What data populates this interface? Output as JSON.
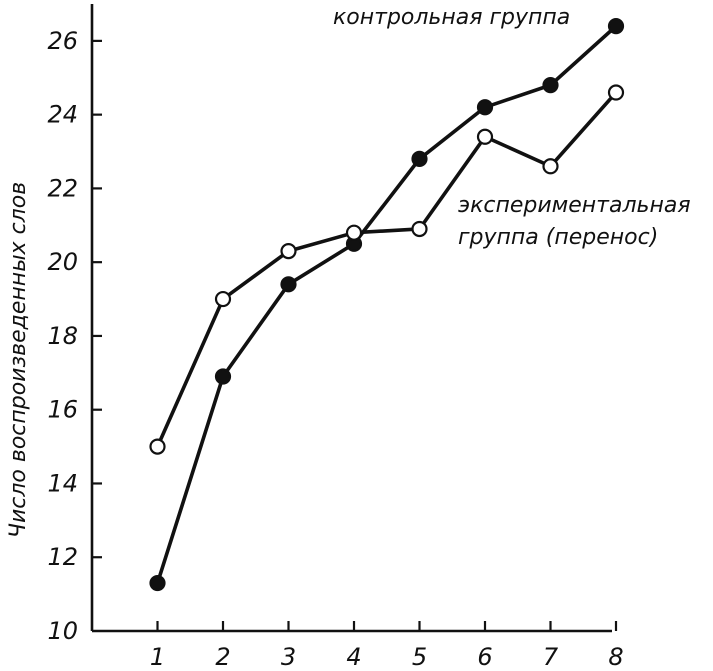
{
  "chart_data": {
    "type": "line",
    "title": "",
    "xlabel": "",
    "ylabel": "Число воспроизведенных слов",
    "x": [
      1,
      2,
      3,
      4,
      5,
      6,
      7,
      8
    ],
    "xlim": [
      0,
      8
    ],
    "ylim": [
      10,
      27
    ],
    "yticks": [
      10,
      12,
      14,
      16,
      18,
      20,
      22,
      24,
      26
    ],
    "grid": false,
    "series": [
      {
        "name": "контрольная группа",
        "marker": "filled",
        "color": "#111111",
        "values": [
          11.3,
          16.9,
          19.4,
          20.5,
          22.8,
          24.2,
          24.8,
          26.4
        ]
      },
      {
        "name": "экспериментальная группа (перенос)",
        "name_line1": "экспериментальная",
        "name_line2": "группа (перенос)",
        "marker": "open",
        "color": "#111111",
        "values": [
          15.0,
          19.0,
          20.3,
          20.8,
          20.9,
          23.4,
          22.6,
          24.6
        ]
      }
    ]
  }
}
